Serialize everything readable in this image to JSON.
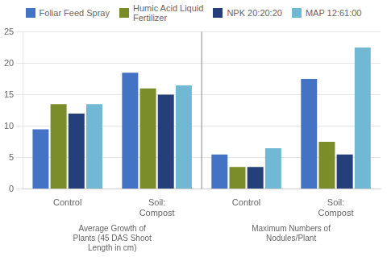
{
  "chart_data": {
    "type": "bar",
    "categories": [
      "Control",
      "Soil:\nCompost",
      "Control",
      "Soil:\nCompost"
    ],
    "series": [
      {
        "name": "Foliar Feed Spray",
        "color": "#4472C4",
        "values": [
          9.5,
          18.5,
          5.5,
          17.5
        ]
      },
      {
        "name": "Humic Acid Liquid\nFertilizer",
        "color": "#7B8C2A",
        "values": [
          13.5,
          16.0,
          3.5,
          7.5
        ]
      },
      {
        "name": "NPK 20:20:20",
        "color": "#243F7A",
        "values": [
          12.0,
          15.0,
          3.5,
          5.5
        ]
      },
      {
        "name": "MAP 12:61:00",
        "color": "#70B8D4",
        "values": [
          13.5,
          16.5,
          6.5,
          22.5
        ]
      }
    ],
    "ylim": [
      0,
      25
    ],
    "yticks": [
      0,
      5,
      10,
      15,
      20,
      25
    ],
    "grid": true,
    "legend": "top",
    "annotations": [
      "Average Growth of\nPlants (45 DAS Shoot\nLength in cm)",
      "Maximum Numbers of\nNodules/Plant"
    ]
  }
}
